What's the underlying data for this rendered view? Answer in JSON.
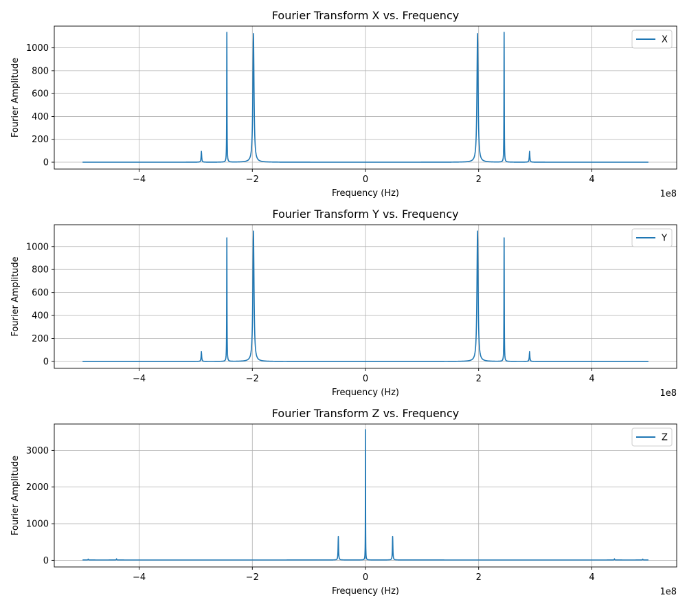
{
  "chart_data": [
    {
      "type": "line",
      "title": "Fourier Transform X vs. Frequency",
      "xlabel": "Frequency (Hz)",
      "ylabel": "Fourier Amplitude",
      "x_offset_text": "1e8",
      "x_tick_labels": [
        "−4",
        "−2",
        "0",
        "2",
        "4"
      ],
      "x_tick_values": [
        -4,
        -2,
        0,
        2,
        4
      ],
      "y_tick_labels": [
        "0",
        "200",
        "400",
        "600",
        "800",
        "1000"
      ],
      "y_tick_values": [
        0,
        200,
        400,
        600,
        800,
        1000
      ],
      "xlim": [
        -5.5,
        5.5
      ],
      "ylim": [
        -60,
        1190
      ],
      "x_range": [
        -5,
        5
      ],
      "grid": true,
      "legend_position": "top-right",
      "series": [
        {
          "name": "X",
          "color": "#1f77b4",
          "baseline": 0,
          "peaks": [
            {
              "x": -2.9,
              "y": 95,
              "w": 0.006
            },
            {
              "x": -2.45,
              "y": 1135,
              "w": 0.003
            },
            {
              "x": -1.98,
              "y": 1125,
              "w": 0.012
            },
            {
              "x": 1.98,
              "y": 1125,
              "w": 0.012
            },
            {
              "x": 2.45,
              "y": 1135,
              "w": 0.003
            },
            {
              "x": 2.9,
              "y": 95,
              "w": 0.006
            }
          ]
        }
      ]
    },
    {
      "type": "line",
      "title": "Fourier Transform Y vs. Frequency",
      "xlabel": "Frequency (Hz)",
      "ylabel": "Fourier Amplitude",
      "x_offset_text": "1e8",
      "x_tick_labels": [
        "−4",
        "−2",
        "0",
        "2",
        "4"
      ],
      "x_tick_values": [
        -4,
        -2,
        0,
        2,
        4
      ],
      "y_tick_labels": [
        "0",
        "200",
        "400",
        "600",
        "800",
        "1000"
      ],
      "y_tick_values": [
        0,
        200,
        400,
        600,
        800,
        1000
      ],
      "xlim": [
        -5.5,
        5.5
      ],
      "ylim": [
        -60,
        1190
      ],
      "x_range": [
        -5,
        5
      ],
      "grid": true,
      "legend_position": "top-right",
      "series": [
        {
          "name": "Y",
          "color": "#1f77b4",
          "baseline": 0,
          "peaks": [
            {
              "x": -2.9,
              "y": 85,
              "w": 0.006
            },
            {
              "x": -2.45,
              "y": 1075,
              "w": 0.003
            },
            {
              "x": -1.98,
              "y": 1135,
              "w": 0.012
            },
            {
              "x": 1.98,
              "y": 1135,
              "w": 0.012
            },
            {
              "x": 2.45,
              "y": 1075,
              "w": 0.003
            },
            {
              "x": 2.9,
              "y": 85,
              "w": 0.006
            }
          ]
        }
      ]
    },
    {
      "type": "line",
      "title": "Fourier Transform Z vs. Frequency",
      "xlabel": "Frequency (Hz)",
      "ylabel": "Fourier Amplitude",
      "x_offset_text": "1e8",
      "x_tick_labels": [
        "−4",
        "−2",
        "0",
        "2",
        "4"
      ],
      "x_tick_values": [
        -4,
        -2,
        0,
        2,
        4
      ],
      "y_tick_labels": [
        "0",
        "1000",
        "2000",
        "3000"
      ],
      "y_tick_values": [
        0,
        1000,
        2000,
        3000
      ],
      "xlim": [
        -5.5,
        5.5
      ],
      "ylim": [
        -180,
        3720
      ],
      "x_range": [
        -5,
        5
      ],
      "grid": true,
      "legend_position": "top-right",
      "series": [
        {
          "name": "Z",
          "color": "#1f77b4",
          "baseline": 10,
          "peaks": [
            {
              "x": -4.9,
              "y": 25,
              "w": 0.004
            },
            {
              "x": -4.4,
              "y": 30,
              "w": 0.004
            },
            {
              "x": -0.48,
              "y": 640,
              "w": 0.005
            },
            {
              "x": 0.0,
              "y": 3560,
              "w": 0.002
            },
            {
              "x": 0.48,
              "y": 640,
              "w": 0.005
            },
            {
              "x": 4.4,
              "y": 30,
              "w": 0.004
            },
            {
              "x": 4.9,
              "y": 25,
              "w": 0.004
            }
          ]
        }
      ]
    }
  ]
}
